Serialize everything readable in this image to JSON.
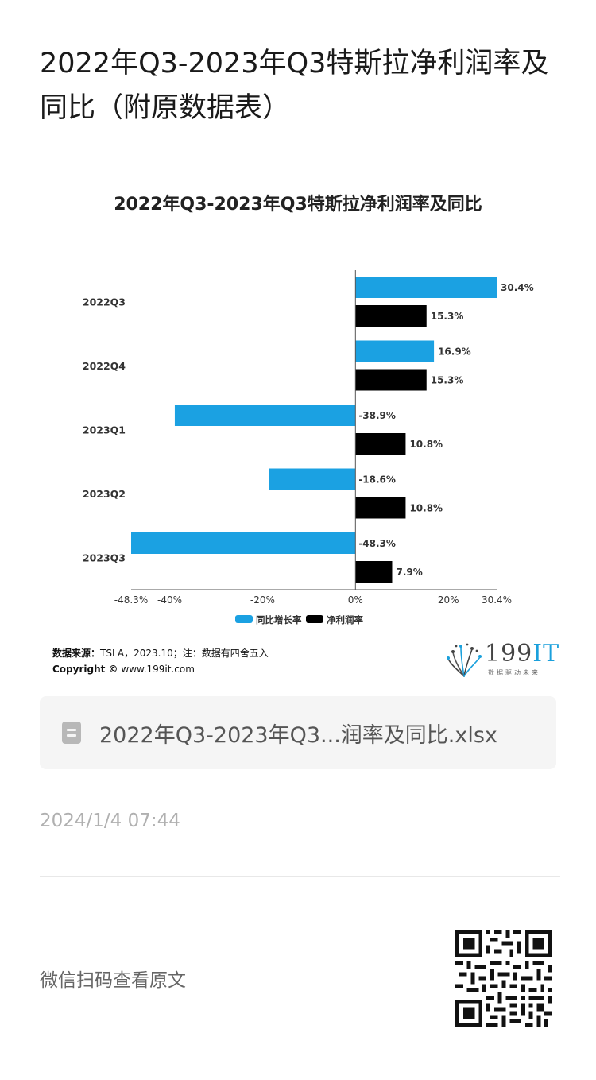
{
  "page": {
    "title": "2022年Q3-2023年Q3特斯拉净利润率及同比（附原数据表）"
  },
  "chart_data": {
    "type": "bar",
    "orientation": "horizontal",
    "title": "2022年Q3-2023年Q3特斯拉净利润率及同比",
    "categories": [
      "2022Q3",
      "2022Q4",
      "2023Q1",
      "2023Q2",
      "2023Q3"
    ],
    "series": [
      {
        "name": "同比增长率",
        "color": "#1ba1e2",
        "values": [
          30.4,
          16.9,
          -38.9,
          -18.6,
          -48.3
        ],
        "labels": [
          "30.4%",
          "16.9%",
          "-38.9%",
          "-18.6%",
          "-48.3%"
        ]
      },
      {
        "name": "净利润率",
        "color": "#000000",
        "values": [
          15.3,
          15.3,
          10.8,
          10.8,
          7.9
        ],
        "labels": [
          "15.3%",
          "15.3%",
          "10.8%",
          "10.8%",
          "7.9%"
        ]
      }
    ],
    "xlim": [
      -48.3,
      30.4
    ],
    "xticks": [
      -48.3,
      -40,
      -20,
      0,
      20,
      30.4
    ],
    "xtick_labels": [
      "-48.3%",
      "-40%",
      "-20%",
      "0%",
      "20%",
      "30.4%"
    ],
    "legend_position": "bottom",
    "grid": false
  },
  "source": {
    "label": "数据来源：",
    "text": "TSLA，2023.10；注：数据有四舍五入",
    "copyright_label": "Copyright ©",
    "copyright_text": "www.199it.com"
  },
  "brand": {
    "number": "199",
    "suffix": "IT",
    "tagline": "数据驱动未来"
  },
  "attachment": {
    "file_name": "2022年Q3-2023年Q3...润率及同比.xlsx",
    "icon": "spreadsheet-file-icon"
  },
  "timestamp": "2024/1/4 07:44",
  "footer": {
    "scan_text": "微信扫码查看原文",
    "qr_icon": "qr-code-icon"
  }
}
